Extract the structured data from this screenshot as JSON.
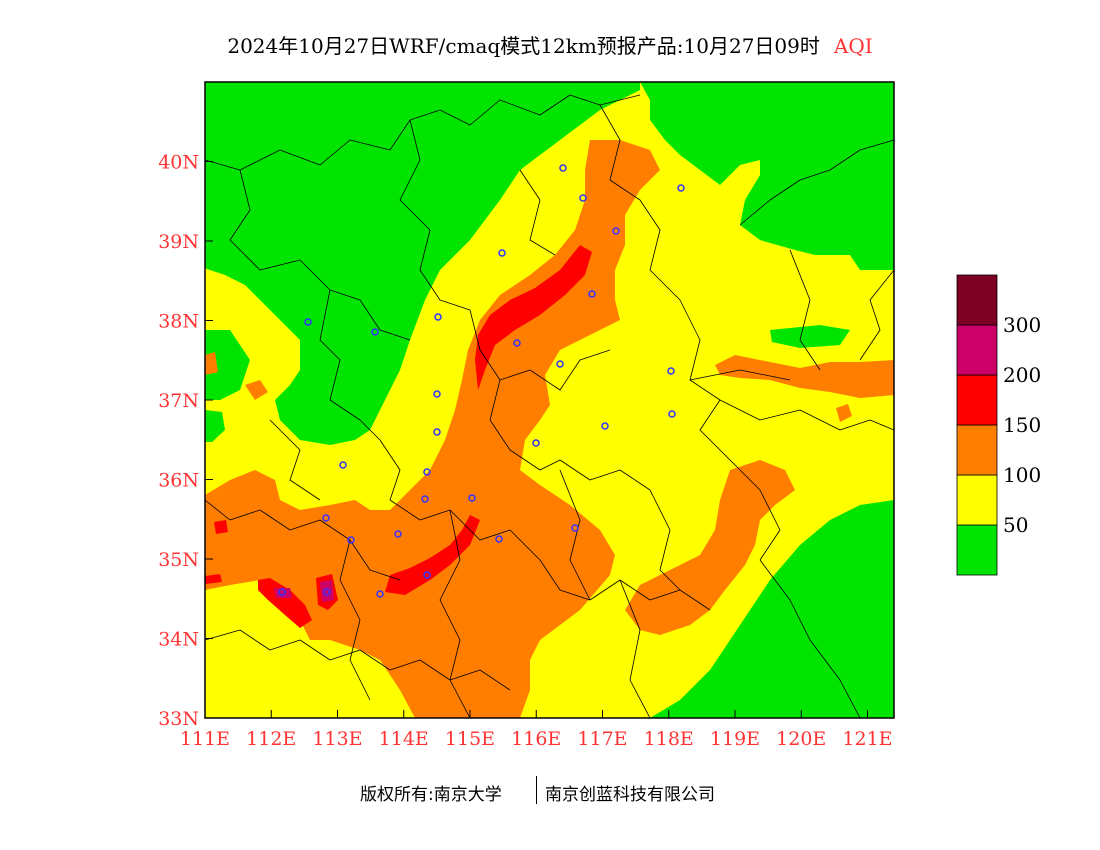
{
  "title": {
    "main": "2024年10月27日WRF/cmaq模式12km预报产品:10月27日09时",
    "product": "AQI"
  },
  "map": {
    "xticks": [
      "111E",
      "112E",
      "113E",
      "114E",
      "115E",
      "116E",
      "117E",
      "118E",
      "119E",
      "120E",
      "121E"
    ],
    "yticks": [
      "33N",
      "34N",
      "35N",
      "36N",
      "37N",
      "38N",
      "39N",
      "40N"
    ],
    "region_lon": [
      111,
      121.4
    ],
    "region_lat": [
      33,
      41
    ],
    "tick_color": "#ff3333"
  },
  "legend": {
    "labels": [
      "50",
      "100",
      "150",
      "200",
      "300"
    ],
    "colors": [
      "#00e400",
      "#ffff00",
      "#ff7e00",
      "#ff0000",
      "#cc0066",
      "#7e0023"
    ]
  },
  "footer": {
    "copyright": "版权所有:南京大学",
    "company": "南京创蓝科技有限公司"
  }
}
